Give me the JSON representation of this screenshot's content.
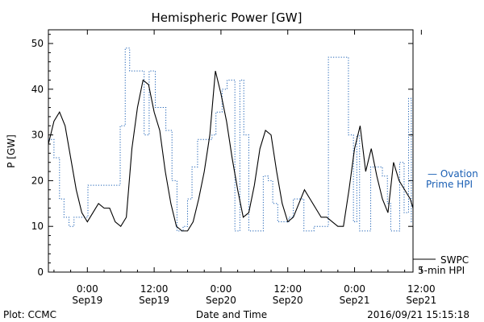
{
  "chart_data": {
    "type": "line",
    "title": "Hemispheric Power [GW]",
    "xlabel": "Date and Time",
    "ylabel": "P [GW]",
    "ylim": [
      0,
      53
    ],
    "yticks": [
      0,
      10,
      20,
      30,
      40,
      50
    ],
    "x_unit": "hours since 2016-09-18 00:00 UT",
    "xlim": [
      17,
      82.5
    ],
    "xticks": [
      {
        "x": 24,
        "top": "0:00",
        "bottom": "Sep19"
      },
      {
        "x": 36,
        "top": "12:00",
        "bottom": "Sep19"
      },
      {
        "x": 48,
        "top": "0:00",
        "bottom": "Sep20"
      },
      {
        "x": 60,
        "top": "12:00",
        "bottom": "Sep20"
      },
      {
        "x": 72,
        "top": "0:00",
        "bottom": "Sep21"
      },
      {
        "x": 84,
        "top": "12:00",
        "bottom": "Sep21"
      }
    ],
    "grid": false,
    "series": [
      {
        "name": "Ovation Prime HPI",
        "color": "#1a5fb4",
        "style": "dotted-step",
        "x": [
          17,
          18.0,
          19.0,
          19.8,
          20.7,
          21.6,
          22.5,
          24.1,
          25.6,
          27.2,
          28.3,
          29.9,
          30.8,
          31.6,
          32.4,
          33.4,
          34.2,
          35.1,
          36.2,
          37.2,
          38.1,
          39.2,
          40.1,
          41.2,
          42.0,
          42.8,
          43.8,
          44.7,
          45.8,
          46.4,
          47.1,
          48.2,
          49.1,
          50.5,
          51.4,
          52.1,
          53.0,
          53.8,
          54.7,
          55.6,
          56.5,
          57.3,
          58.2,
          59.3,
          60.2,
          61.0,
          62.0,
          62.9,
          63.8,
          64.7,
          65.5,
          66.4,
          67.3,
          68.4,
          69.2,
          70.0,
          70.9,
          71.8,
          72.4,
          72.9,
          73.8,
          74.9,
          76.0,
          77.0,
          77.9,
          78.5,
          79.4,
          80.1,
          80.9,
          81.7,
          82.2
        ],
        "y": [
          29,
          25,
          16,
          12,
          10,
          12,
          12,
          19,
          19,
          19,
          19,
          32,
          49,
          44,
          44,
          44,
          30,
          44,
          36,
          36,
          31,
          20,
          9,
          10,
          16,
          23,
          29,
          29,
          29,
          30,
          35,
          40,
          42,
          9,
          42,
          30,
          9,
          9,
          9,
          21,
          20,
          15,
          11,
          11,
          12,
          16,
          16,
          9,
          9,
          10,
          10,
          10,
          47,
          47,
          47,
          47,
          30,
          11,
          30,
          9,
          9,
          23,
          23,
          21,
          15,
          9,
          9,
          24,
          13,
          38,
          11
        ]
      },
      {
        "name": "SWPC 5-min HPI",
        "color": "#000000",
        "style": "solid",
        "x": [
          17,
          18,
          19,
          20,
          21,
          22,
          23,
          24,
          25,
          26,
          27,
          28,
          29,
          30,
          31,
          32,
          33,
          34,
          35,
          36,
          37,
          38,
          39,
          40,
          41,
          42,
          43,
          44,
          45,
          46,
          47,
          48,
          49,
          50,
          51,
          52,
          53,
          54,
          55,
          56,
          57,
          58,
          59,
          60,
          61,
          62,
          63,
          64,
          65,
          66,
          67,
          68,
          69,
          70,
          71,
          72,
          73,
          74,
          75,
          76,
          77,
          78,
          79,
          80,
          81,
          82,
          82.5
        ],
        "y": [
          28,
          33,
          35,
          32,
          25,
          18,
          13,
          11,
          13,
          15,
          14,
          14,
          11,
          10,
          12,
          27,
          36,
          42,
          41,
          35,
          31,
          22,
          15,
          10,
          9,
          9,
          11,
          16,
          22,
          30,
          44,
          39,
          33,
          25,
          18,
          12,
          13,
          19,
          27,
          31,
          30,
          22,
          15,
          11,
          12,
          15,
          18,
          16,
          14,
          12,
          12,
          11,
          10,
          10,
          18,
          27,
          32,
          22,
          27,
          21,
          16,
          13,
          24,
          20,
          18,
          16,
          14
        ]
      }
    ],
    "legend": [
      {
        "label": "— Ovation",
        "label2": "Prime HPI",
        "color": "#1a5fb4"
      },
      {
        "label": "SWPC",
        "label2": "5-min HPI",
        "color": "#000000"
      }
    ]
  },
  "footer": {
    "left": "Plot: CCMC",
    "center": "Date and Time",
    "right": "2016/09/21 15:15:18"
  }
}
